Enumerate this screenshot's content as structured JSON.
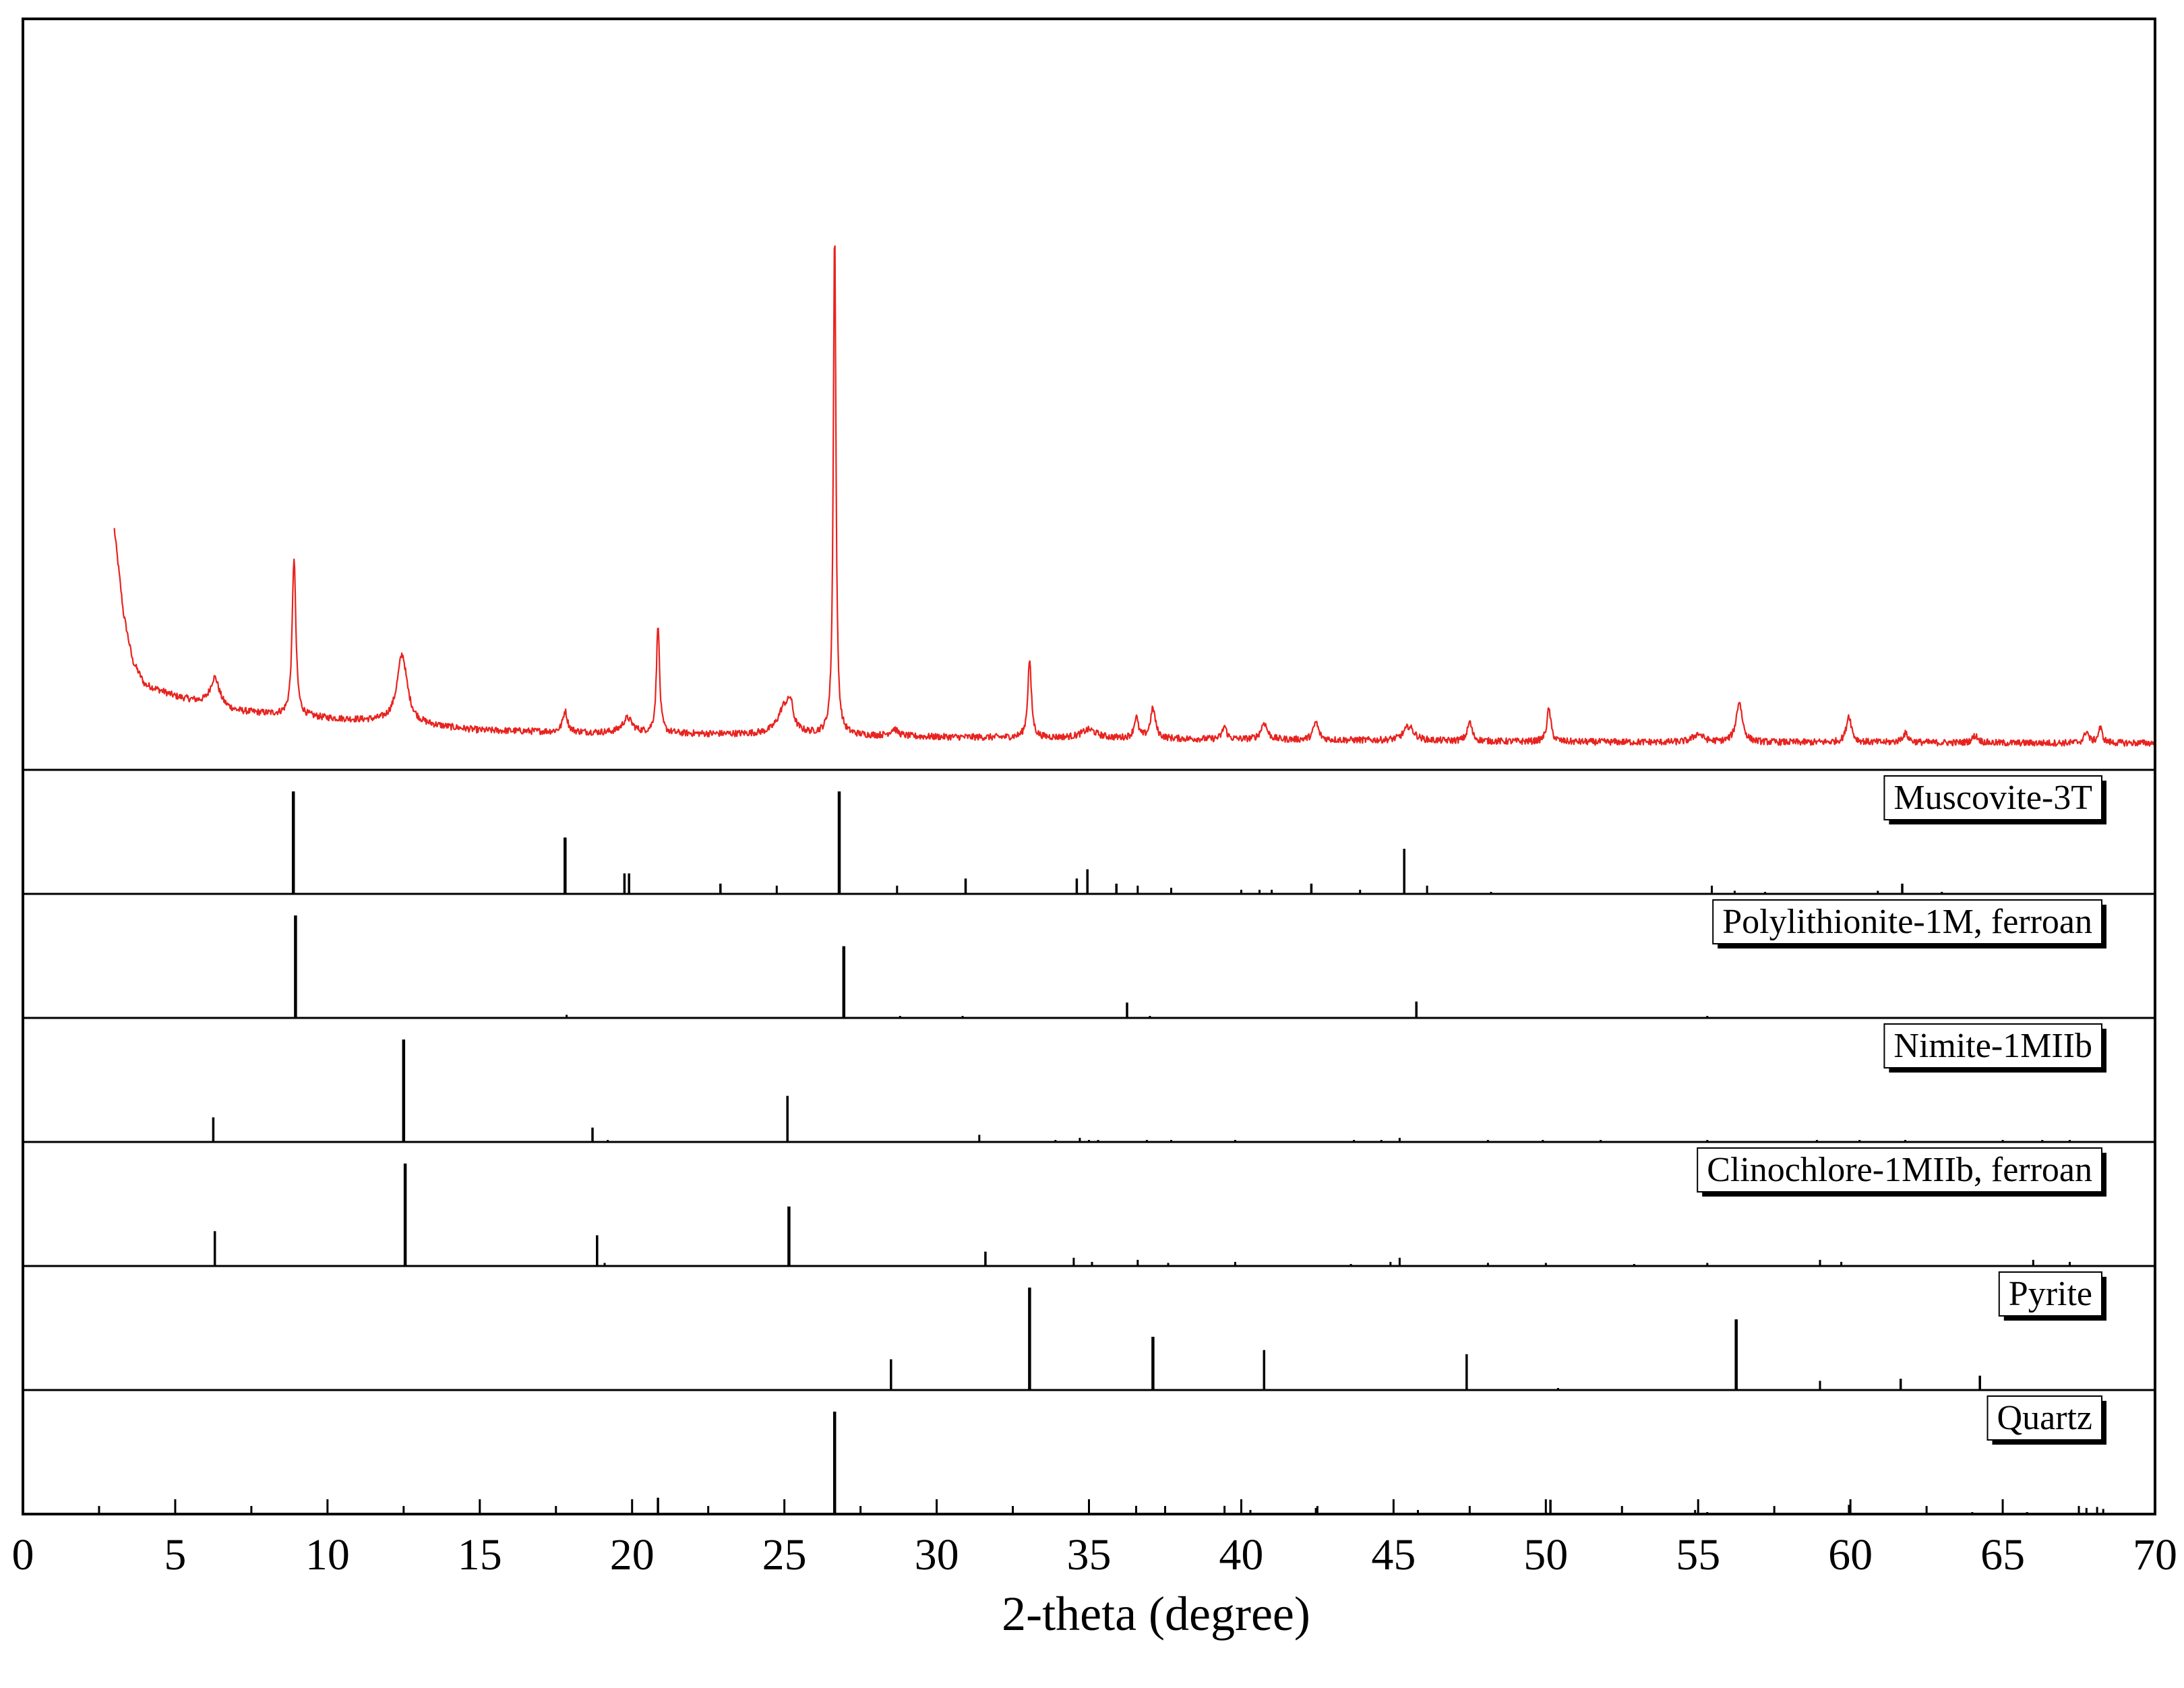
{
  "chart_data": {
    "type": "line",
    "xlabel": "2-theta (degree)",
    "xlim": [
      0,
      70
    ],
    "xticks": [
      0,
      5,
      10,
      15,
      20,
      25,
      30,
      35,
      40,
      45,
      50,
      55,
      60,
      65,
      70
    ],
    "colors": {
      "pattern": "#e8231f",
      "reference": "#000000"
    },
    "measured": {
      "baseline": [
        [
          3.0,
          36
        ],
        [
          3.3,
          22
        ],
        [
          3.6,
          14
        ],
        [
          4.0,
          10
        ],
        [
          5.0,
          8
        ],
        [
          7.0,
          5.5
        ],
        [
          10.0,
          4.3
        ],
        [
          12.0,
          3.7
        ],
        [
          15.0,
          2.3
        ],
        [
          20.0,
          1.8
        ],
        [
          25.0,
          1.6
        ],
        [
          30.0,
          1.2
        ],
        [
          35.0,
          1.0
        ],
        [
          40.0,
          0.8
        ],
        [
          45.0,
          0.6
        ],
        [
          50.0,
          0.4
        ],
        [
          55.0,
          0.3
        ],
        [
          60.0,
          0.3
        ],
        [
          65.0,
          0.2
        ],
        [
          70.0,
          0.2
        ]
      ],
      "peaks": [
        {
          "x": 6.3,
          "h": 4.8,
          "w": 0.18
        },
        {
          "x": 8.9,
          "h": 26.5,
          "w": 0.07
        },
        {
          "x": 12.45,
          "h": 11.5,
          "w": 0.2
        },
        {
          "x": 17.8,
          "h": 3.5,
          "w": 0.09
        },
        {
          "x": 19.85,
          "h": 2.5,
          "w": 0.2
        },
        {
          "x": 20.85,
          "h": 18.5,
          "w": 0.06
        },
        {
          "x": 25.0,
          "h": 4.5,
          "w": 0.25
        },
        {
          "x": 25.2,
          "h": 3.5,
          "w": 0.1
        },
        {
          "x": 26.65,
          "h": 85.0,
          "w": 0.05
        },
        {
          "x": 28.6,
          "h": 1.2,
          "w": 0.15
        },
        {
          "x": 33.05,
          "h": 13.0,
          "w": 0.07
        },
        {
          "x": 35.0,
          "h": 1.4,
          "w": 0.3
        },
        {
          "x": 36.55,
          "h": 3.5,
          "w": 0.08
        },
        {
          "x": 37.1,
          "h": 5.0,
          "w": 0.1
        },
        {
          "x": 39.45,
          "h": 2.2,
          "w": 0.08
        },
        {
          "x": 40.75,
          "h": 2.8,
          "w": 0.12
        },
        {
          "x": 42.45,
          "h": 3.0,
          "w": 0.1
        },
        {
          "x": 45.5,
          "h": 2.4,
          "w": 0.2
        },
        {
          "x": 47.5,
          "h": 3.2,
          "w": 0.09
        },
        {
          "x": 50.1,
          "h": 5.5,
          "w": 0.08
        },
        {
          "x": 55.0,
          "h": 1.4,
          "w": 0.2
        },
        {
          "x": 56.35,
          "h": 6.8,
          "w": 0.12
        },
        {
          "x": 59.95,
          "h": 4.5,
          "w": 0.1
        },
        {
          "x": 61.8,
          "h": 1.5,
          "w": 0.12
        },
        {
          "x": 64.1,
          "h": 1.2,
          "w": 0.12
        },
        {
          "x": 67.75,
          "h": 2.0,
          "w": 0.08
        },
        {
          "x": 68.2,
          "h": 2.5,
          "w": 0.08
        }
      ],
      "ymax": 100
    },
    "references": [
      {
        "name": "Muscovite-3T",
        "sticks": [
          [
            8.88,
            100
          ],
          [
            17.8,
            55
          ],
          [
            19.75,
            20
          ],
          [
            19.9,
            20
          ],
          [
            22.9,
            10
          ],
          [
            24.75,
            8
          ],
          [
            26.8,
            100
          ],
          [
            28.7,
            8
          ],
          [
            30.95,
            15
          ],
          [
            34.6,
            15
          ],
          [
            34.95,
            24
          ],
          [
            35.9,
            10
          ],
          [
            36.6,
            8
          ],
          [
            37.7,
            6
          ],
          [
            40.0,
            4
          ],
          [
            40.6,
            4
          ],
          [
            41.0,
            4
          ],
          [
            42.3,
            10
          ],
          [
            43.9,
            4
          ],
          [
            45.35,
            44
          ],
          [
            46.1,
            8
          ],
          [
            48.2,
            2
          ],
          [
            55.45,
            8
          ],
          [
            56.2,
            3
          ],
          [
            57.2,
            2
          ],
          [
            60.9,
            3
          ],
          [
            61.7,
            10
          ],
          [
            63.0,
            2
          ]
        ]
      },
      {
        "name": "Polylithionite-1M, ferroan",
        "sticks": [
          [
            8.95,
            100
          ],
          [
            17.85,
            3
          ],
          [
            26.95,
            70
          ],
          [
            28.8,
            2
          ],
          [
            30.85,
            2
          ],
          [
            36.25,
            15
          ],
          [
            37.0,
            2
          ],
          [
            41.8,
            1
          ],
          [
            45.75,
            16
          ],
          [
            55.3,
            2
          ],
          [
            65.9,
            1
          ]
        ]
      },
      {
        "name": "Nimite-1MIIb",
        "sticks": [
          [
            6.25,
            24
          ],
          [
            12.5,
            100
          ],
          [
            18.7,
            14
          ],
          [
            19.2,
            2
          ],
          [
            25.1,
            45
          ],
          [
            31.4,
            7
          ],
          [
            33.9,
            2
          ],
          [
            34.7,
            4
          ],
          [
            35.0,
            2
          ],
          [
            35.3,
            2
          ],
          [
            36.9,
            2
          ],
          [
            37.7,
            2
          ],
          [
            39.8,
            2
          ],
          [
            43.7,
            2
          ],
          [
            44.6,
            2
          ],
          [
            45.2,
            4
          ],
          [
            48.1,
            2
          ],
          [
            49.9,
            2
          ],
          [
            51.8,
            2
          ],
          [
            55.3,
            2
          ],
          [
            58.9,
            2
          ],
          [
            60.3,
            2
          ],
          [
            61.8,
            2
          ],
          [
            65.0,
            2
          ],
          [
            66.3,
            2
          ],
          [
            67.2,
            2
          ]
        ]
      },
      {
        "name": "Clinochlore-1MIIb, ferroan",
        "sticks": [
          [
            6.3,
            34
          ],
          [
            12.55,
            100
          ],
          [
            18.85,
            30
          ],
          [
            19.1,
            3
          ],
          [
            25.15,
            58
          ],
          [
            31.6,
            14
          ],
          [
            34.5,
            8
          ],
          [
            35.1,
            4
          ],
          [
            36.6,
            6
          ],
          [
            37.6,
            3
          ],
          [
            39.8,
            4
          ],
          [
            43.6,
            2
          ],
          [
            44.9,
            4
          ],
          [
            45.2,
            8
          ],
          [
            48.1,
            3
          ],
          [
            50.0,
            3
          ],
          [
            52.9,
            2
          ],
          [
            55.3,
            3
          ],
          [
            59.0,
            6
          ],
          [
            59.7,
            4
          ],
          [
            66.0,
            6
          ],
          [
            67.2,
            4
          ]
        ]
      },
      {
        "name": "Pyrite",
        "sticks": [
          [
            28.5,
            30
          ],
          [
            33.05,
            100
          ],
          [
            37.1,
            52
          ],
          [
            40.75,
            39
          ],
          [
            47.4,
            35
          ],
          [
            50.4,
            2
          ],
          [
            56.25,
            69
          ],
          [
            59.0,
            9
          ],
          [
            61.65,
            11
          ],
          [
            64.25,
            14
          ]
        ]
      },
      {
        "name": "Quartz",
        "sticks": [
          [
            20.85,
            16
          ],
          [
            26.65,
            100
          ],
          [
            36.55,
            8
          ],
          [
            39.45,
            8
          ],
          [
            40.3,
            4
          ],
          [
            42.45,
            6
          ],
          [
            45.8,
            4
          ],
          [
            50.15,
            14
          ],
          [
            54.9,
            4
          ],
          [
            55.3,
            2
          ],
          [
            59.95,
            9
          ],
          [
            64.0,
            2
          ],
          [
            65.8,
            2
          ],
          [
            67.75,
            6
          ],
          [
            68.1,
            7
          ],
          [
            68.3,
            5
          ]
        ]
      }
    ]
  }
}
